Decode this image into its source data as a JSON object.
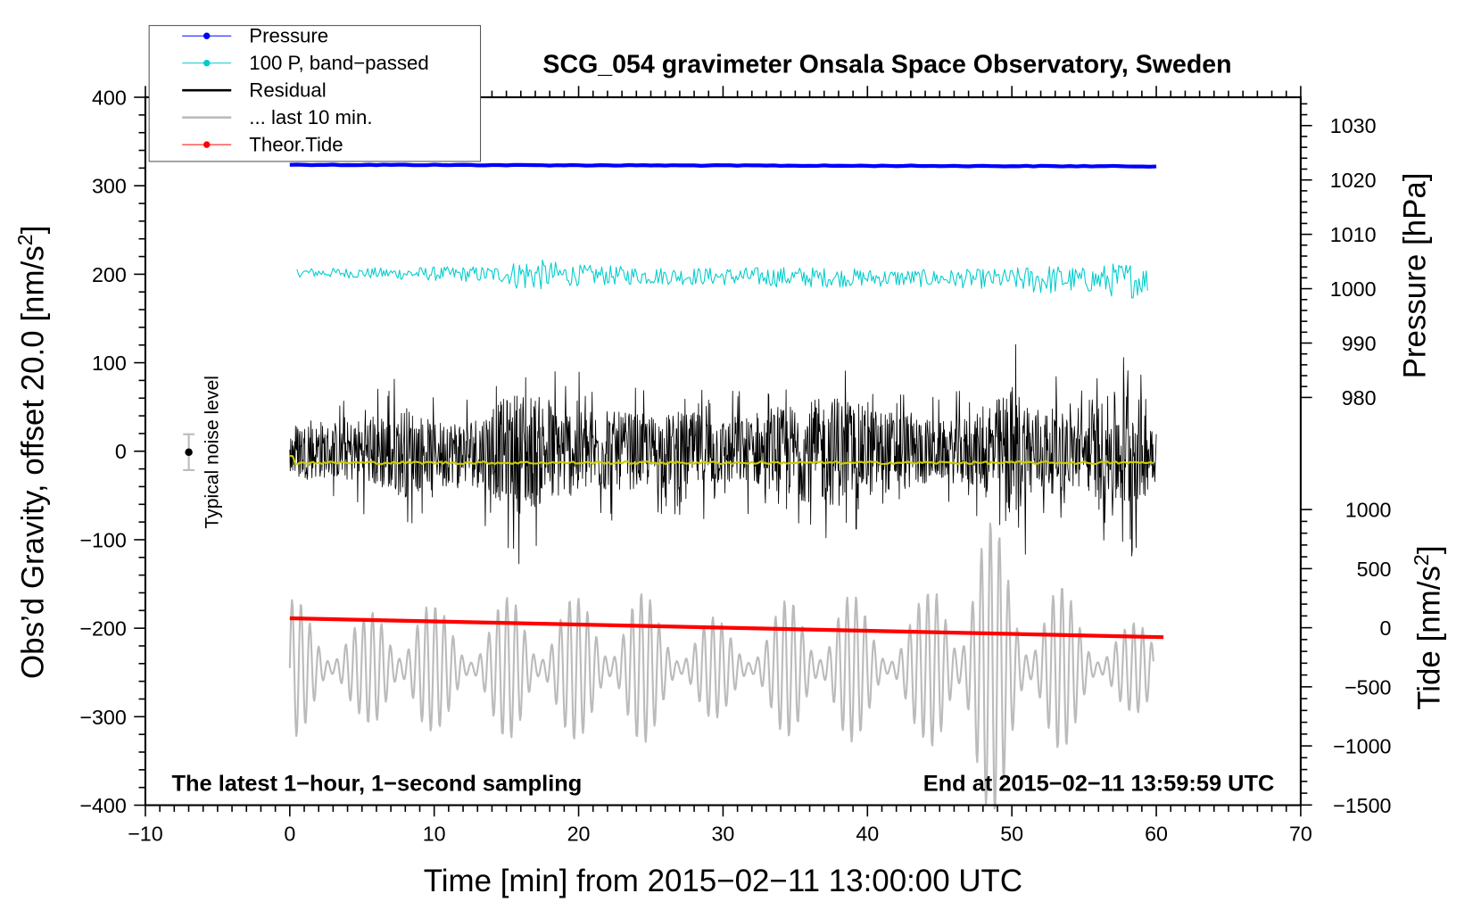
{
  "chart_data": {
    "type": "line",
    "title": "SCG_054 gravimeter Onsala Space Observatory, Sweden",
    "xlabel": "Time [min] from 2015−02−11 13:00:00 UTC",
    "ylabel_left": {
      "text": "Obs’d Gravity, offset 20.0 [nm/s",
      "sup": "2",
      "close": "]"
    },
    "ylabel_right_pressure": "Pressure [hPa]",
    "ylabel_right_tide": {
      "text": "Tide [nm/s",
      "sup": "2",
      "close": "]"
    },
    "xlim": [
      -10,
      70
    ],
    "ylim_left": [
      -400,
      400
    ],
    "ylim_pressure": [
      975,
      1035
    ],
    "ylim_tide": [
      -1500,
      1000
    ],
    "x_ticks": [
      "−10",
      "0",
      "10",
      "20",
      "30",
      "40",
      "50",
      "60",
      "70"
    ],
    "y_ticks_left": [
      "400",
      "300",
      "200",
      "100",
      "0",
      "−100",
      "−200",
      "−300",
      "−400"
    ],
    "y_ticks_pressure": [
      "1030",
      "1020",
      "1010",
      "1000",
      "990",
      "980"
    ],
    "y_ticks_tide": [
      "1000",
      "500",
      "0",
      "−500",
      "−1000",
      "−1500"
    ],
    "legend": {
      "placement": "top-left",
      "entries": [
        {
          "label": "Pressure",
          "color": "#0000ff",
          "marker": true
        },
        {
          "label": "100 P, band−passed",
          "color": "#00cccc",
          "marker": true
        },
        {
          "label": "Residual",
          "color": "#000000",
          "marker": false
        },
        {
          "label": "... last 10 min.",
          "color": "#bbbbbb",
          "marker": false
        },
        {
          "label": "Theor.Tide",
          "color": "#ff0000",
          "marker": true
        }
      ]
    },
    "annotations": {
      "bottom_left": "The latest 1−hour, 1−second sampling",
      "bottom_right": "End at 2015−02−11 13:59:59 UTC",
      "noise_label": "Typical noise level"
    },
    "noise_level": {
      "x": -7,
      "y": 0,
      "error": 20
    },
    "series": [
      {
        "name": "Pressure",
        "axis": "pressure",
        "color": "#0000ff",
        "x": [
          0,
          60
        ],
        "y": [
          1022.8,
          1022.5
        ]
      },
      {
        "name": "100 P, band-passed",
        "axis": "left",
        "color": "#00cccc",
        "center": 202,
        "envelope_x": [
          0,
          5,
          10,
          15,
          16,
          20,
          25,
          30,
          35,
          40,
          45,
          50,
          52,
          55,
          58,
          60
        ],
        "envelope_amp": [
          5,
          6,
          8,
          10,
          20,
          12,
          10,
          10,
          12,
          10,
          10,
          12,
          18,
          14,
          22,
          12
        ]
      },
      {
        "name": "Residual",
        "axis": "left",
        "color": "#000000",
        "center": 0,
        "envelope_x": [
          0,
          3,
          5,
          8,
          10,
          13,
          16,
          18,
          20,
          23,
          25,
          28,
          30,
          33,
          35,
          38,
          40,
          43,
          45,
          48,
          50,
          52,
          55,
          57,
          58,
          60
        ],
        "envelope_amp": [
          60,
          55,
          70,
          95,
          60,
          75,
          130,
          105,
          90,
          80,
          75,
          80,
          70,
          75,
          100,
          115,
          90,
          80,
          60,
          80,
          140,
          90,
          80,
          120,
          145,
          60
        ]
      },
      {
        "name": "smoothed residual",
        "axis": "left",
        "color": "#cccc00",
        "center": -13
      },
      {
        "name": "... last 10 min.",
        "axis": "left",
        "color": "#bbbbbb",
        "center": -245,
        "envelope_x": [
          0,
          5,
          8,
          10,
          13,
          16,
          20,
          23,
          26,
          30,
          33,
          35,
          38,
          41,
          44,
          47,
          50,
          53,
          55,
          58,
          60
        ],
        "envelope_amp": [
          80,
          55,
          110,
          70,
          60,
          90,
          80,
          100,
          70,
          55,
          60,
          85,
          95,
          60,
          80,
          200,
          140,
          100,
          70,
          50,
          55
        ]
      },
      {
        "name": "Theor.Tide",
        "axis": "tide",
        "color": "#ff0000",
        "x": [
          0,
          60.5
        ],
        "y": [
          80,
          -80
        ]
      }
    ]
  }
}
